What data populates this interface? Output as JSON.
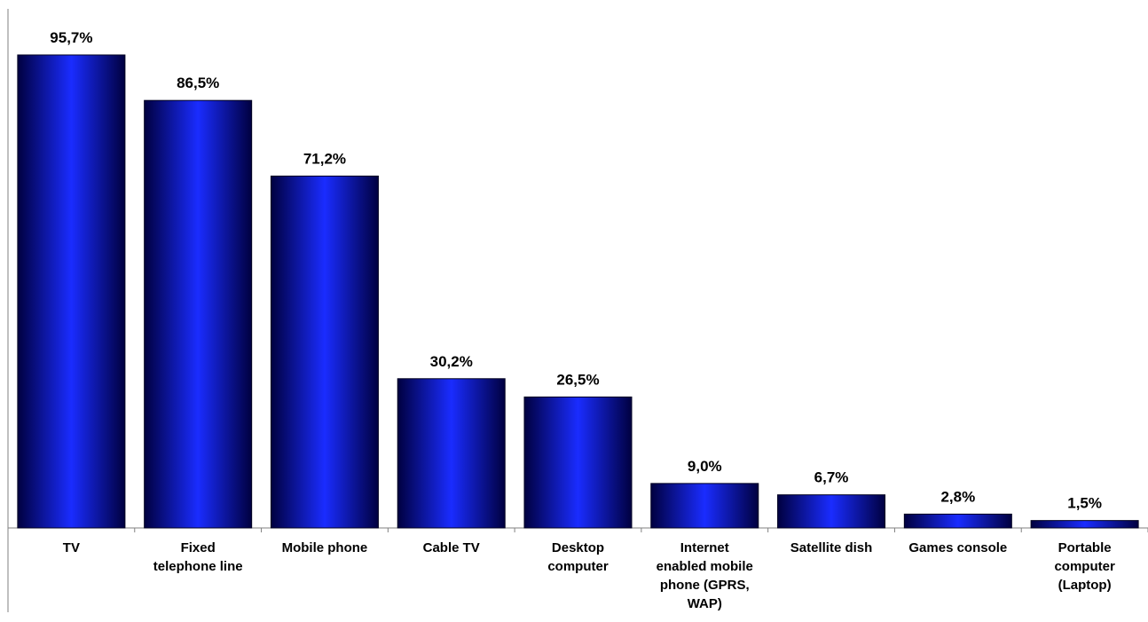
{
  "chart_data": {
    "type": "bar",
    "categories": [
      [
        "TV"
      ],
      [
        "Fixed",
        "telephone line"
      ],
      [
        "Mobile phone"
      ],
      [
        "Cable TV"
      ],
      [
        "Desktop",
        "computer"
      ],
      [
        "Internet",
        "enabled mobile",
        "phone (GPRS,",
        "WAP)"
      ],
      [
        "Satellite dish"
      ],
      [
        "Games console"
      ],
      [
        "Portable",
        "computer",
        "(Laptop)"
      ]
    ],
    "values": [
      95.7,
      86.5,
      71.2,
      30.2,
      26.5,
      9.0,
      6.7,
      2.8,
      1.5
    ],
    "value_labels": [
      "95,7%",
      "86,5%",
      "71,2%",
      "30,2%",
      "26,5%",
      "9,0%",
      "6,7%",
      "2,8%",
      "1,5%"
    ],
    "title": "",
    "xlabel": "",
    "ylabel": "",
    "ylim": [
      0,
      100
    ],
    "grid": false,
    "legend": "none",
    "colors": {
      "bar_dark": "#000040",
      "bar_light": "#1a2cff",
      "axis": "#808080"
    }
  }
}
